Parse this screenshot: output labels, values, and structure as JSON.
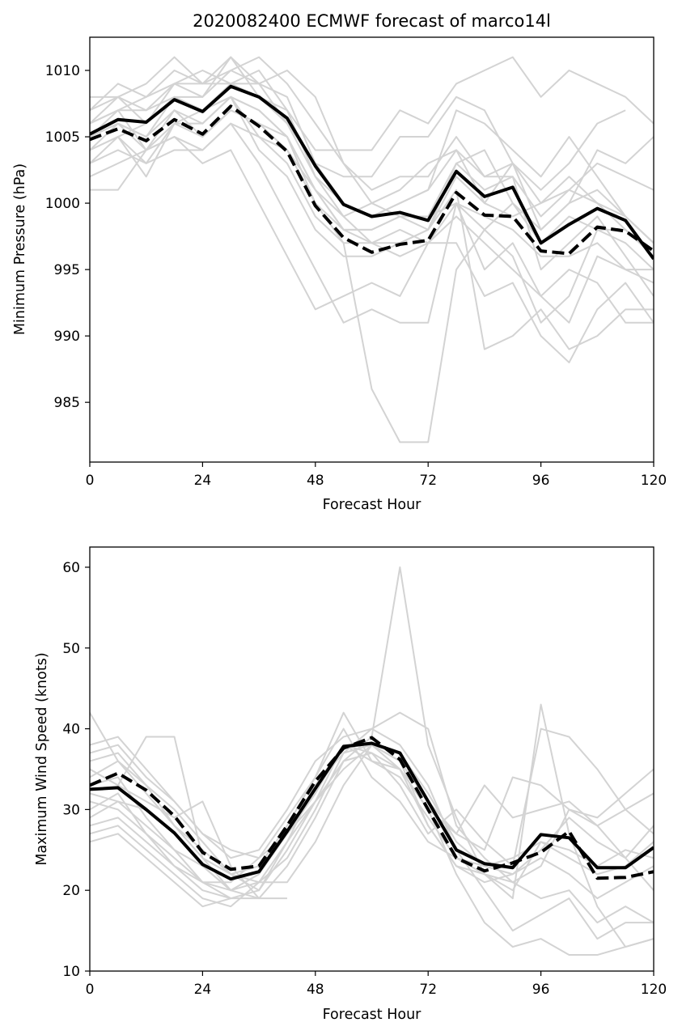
{
  "figure_title": "2020082400 ECMWF forecast of marco14l",
  "colors": {
    "ensemble": "#d3d3d3",
    "mean": "#000000",
    "frame": "#000000",
    "background": "#ffffff"
  },
  "chart_data": [
    {
      "type": "line",
      "title": "2020082400 ECMWF forecast of marco14l",
      "xlabel": "Forecast Hour",
      "ylabel": "Minimum Pressure (hPa)",
      "xlim": [
        0,
        120
      ],
      "ylim": [
        980.5,
        1012.5
      ],
      "xticks": [
        0,
        24,
        48,
        72,
        96,
        120
      ],
      "yticks": [
        985,
        990,
        995,
        1000,
        1005,
        1010
      ],
      "grid": false,
      "legend": "none",
      "x": [
        0,
        6,
        12,
        18,
        24,
        30,
        36,
        42,
        48,
        54,
        60,
        66,
        72,
        78,
        84,
        90,
        96,
        102,
        108,
        114,
        120
      ],
      "series": [
        {
          "style": "solid-black",
          "values": [
            1005.2,
            1006.3,
            1006.1,
            1007.8,
            1006.9,
            1008.8,
            1008.0,
            1006.4,
            1002.8,
            999.9,
            999.0,
            999.3,
            998.7,
            1002.4,
            1000.5,
            1001.2,
            997.0,
            998.4,
            999.6,
            998.7,
            995.8
          ]
        },
        {
          "style": "dashed-black",
          "values": [
            1004.8,
            1005.6,
            1004.7,
            1006.3,
            1005.2,
            1007.3,
            1005.8,
            1003.9,
            999.8,
            997.4,
            996.3,
            996.9,
            997.2,
            1000.8,
            999.1,
            999.0,
            996.4,
            996.2,
            998.2,
            997.9,
            996.4
          ]
        },
        {
          "style": "ensemble",
          "values": [
            1006,
            1008,
            1009,
            1011,
            1009,
            1010,
            1011,
            1009,
            1006,
            1003,
            1001,
            1002,
            1002,
            1005,
            1002,
            1003,
            1000,
            1001,
            1003,
            1002,
            1001
          ]
        },
        {
          "style": "ensemble",
          "values": [
            1005,
            1007,
            1008,
            1009,
            1008,
            1011,
            1009,
            1008,
            1003,
            1000,
            999,
            1000,
            1001,
            1007,
            1006,
            1004,
            1002,
            1005,
            1002,
            999,
            997
          ]
        },
        {
          "style": "ensemble",
          "values": [
            1004,
            1006,
            1005,
            1008,
            1007,
            1009,
            1008,
            1007,
            1002,
            999,
            1000,
            1001,
            1003,
            1004,
            1000,
            1003,
            998,
            1000,
            1004,
            1003,
            1005
          ]
        },
        {
          "style": "ensemble",
          "values": [
            1003,
            1004,
            1003,
            1006,
            1005,
            1007,
            1006,
            1004,
            1001,
            998,
            998,
            999,
            999,
            1000,
            998,
            1000,
            997,
            999,
            998,
            998,
            996
          ]
        },
        {
          "style": "ensemble",
          "values": [
            1001,
            1001,
            1004,
            1005,
            1004,
            1006,
            1003,
            999,
            995,
            991,
            992,
            991,
            991,
            1000,
            995,
            997,
            993,
            991,
            996,
            995,
            995
          ]
        },
        {
          "style": "ensemble",
          "values": [
            1007,
            1008,
            1006,
            1009,
            1010,
            1009,
            1010,
            1007,
            1004,
            1004,
            1004,
            1007,
            1006,
            1009,
            1010,
            1011,
            1008,
            1010,
            1009,
            1008,
            1006
          ]
        },
        {
          "style": "ensemble",
          "values": [
            1004,
            1005,
            1002,
            1006,
            1006,
            1008,
            1004,
            1002,
            998,
            996,
            996,
            997,
            998,
            1003,
            1001,
            1002,
            999,
            1001,
            1000,
            999,
            997
          ]
        },
        {
          "style": "ensemble",
          "values": [
            1002,
            1003,
            1004,
            1007,
            1005,
            1007,
            1006,
            1005,
            1000,
            997,
            986,
            982,
            982,
            995,
            998,
            996,
            991,
            993,
            998,
            997,
            995
          ]
        },
        {
          "style": "ensemble",
          "values": [
            1006,
            1007,
            1007,
            1008,
            1008,
            1010,
            1009,
            1006,
            1003,
            1002,
            1002,
            1005,
            1005,
            1008,
            1007,
            1003,
            1001,
            1003,
            1006,
            1007,
            null
          ]
        },
        {
          "style": "ensemble",
          "values": [
            1005,
            1006,
            1005,
            1007,
            1006,
            1008,
            1007,
            1005,
            1001,
            999,
            997,
            998,
            997,
            997,
            993,
            994,
            990,
            988,
            992,
            994,
            991
          ]
        },
        {
          "style": "ensemble",
          "values": [
            1003,
            1005,
            1003,
            1004,
            1004,
            1006,
            1005,
            1004,
            1000,
            998,
            997,
            997,
            998,
            1001,
            989,
            990,
            992,
            989,
            990,
            992,
            992
          ]
        },
        {
          "style": "ensemble",
          "values": [
            1007,
            1009,
            1008,
            1010,
            1009,
            1011,
            1008,
            1006,
            1002,
            1000,
            999,
            1000,
            1001,
            1004,
            1002,
            1002,
            995,
            997,
            999,
            996,
            993
          ]
        },
        {
          "style": "ensemble",
          "values": [
            1005,
            1006,
            1004,
            1005,
            1003,
            1004,
            1000,
            996,
            992,
            993,
            994,
            993,
            997,
            999,
            997,
            995,
            993,
            995,
            994,
            991,
            991
          ]
        },
        {
          "style": "ensemble",
          "values": [
            1008,
            1008,
            1007,
            1009,
            1009,
            1009,
            1009,
            1010,
            1008,
            1003,
            1000,
            999,
            998,
            1002,
            1000,
            999,
            1000,
            1002,
            1000,
            998,
            996
          ]
        },
        {
          "style": "ensemble",
          "values": [
            1004,
            1005,
            1006,
            1008,
            1007,
            1008,
            1007,
            1005,
            1001,
            998,
            998,
            999,
            999,
            1003,
            1004,
            1000,
            998,
            1000,
            1001,
            999,
            997
          ]
        },
        {
          "style": "ensemble",
          "values": [
            1006,
            1007,
            1004,
            1006,
            1007,
            1008,
            1005,
            1003,
            999,
            997,
            997,
            996,
            997,
            1000,
            999,
            998,
            996,
            996,
            997,
            995,
            994
          ]
        }
      ]
    },
    {
      "type": "line",
      "title": "",
      "xlabel": "Forecast Hour",
      "ylabel": "Maximum Wind Speed (knots)",
      "xlim": [
        0,
        120
      ],
      "ylim": [
        10,
        62.5
      ],
      "xticks": [
        0,
        24,
        48,
        72,
        96,
        120
      ],
      "yticks": [
        10,
        20,
        30,
        40,
        50,
        60
      ],
      "grid": false,
      "legend": "none",
      "x": [
        0,
        6,
        12,
        18,
        24,
        30,
        36,
        42,
        48,
        54,
        60,
        66,
        72,
        78,
        84,
        90,
        96,
        102,
        108,
        114,
        120
      ],
      "series": [
        {
          "style": "solid-black",
          "values": [
            32.5,
            32.7,
            30.0,
            27.1,
            23.2,
            21.4,
            22.3,
            27.3,
            32.6,
            37.8,
            38.2,
            37.0,
            31.0,
            25.0,
            23.3,
            22.8,
            26.9,
            26.5,
            22.8,
            22.8,
            25.3
          ]
        },
        {
          "style": "dashed-black",
          "values": [
            33.0,
            34.5,
            32.4,
            29.2,
            24.7,
            22.6,
            23.0,
            28.0,
            33.5,
            37.6,
            38.9,
            36.2,
            30.0,
            24.0,
            22.4,
            23.4,
            24.7,
            27.3,
            21.5,
            21.6,
            22.3
          ]
        },
        {
          "style": "ensemble",
          "values": [
            42,
            36,
            33,
            30,
            26,
            22,
            23,
            28,
            34,
            42,
            36,
            35,
            28,
            23,
            21,
            22,
            24,
            22,
            19,
            21,
            23
          ]
        },
        {
          "style": "ensemble",
          "values": [
            38,
            39,
            35,
            31,
            27,
            24,
            25,
            30,
            36,
            39,
            40,
            42,
            40,
            28,
            24,
            21,
            23,
            30,
            29,
            32,
            35
          ]
        },
        {
          "style": "ensemble",
          "values": [
            35,
            33,
            39,
            39,
            24,
            20,
            22,
            27,
            32,
            38,
            37,
            35,
            30,
            27,
            33,
            29,
            30,
            31,
            28,
            24,
            20
          ]
        },
        {
          "style": "ensemble",
          "values": [
            31,
            30,
            27,
            23,
            20,
            19,
            20,
            25,
            31,
            36,
            39,
            60,
            38,
            29,
            22,
            19,
            43,
            27,
            18,
            13,
            14
          ]
        },
        {
          "style": "ensemble",
          "values": [
            27,
            28,
            25,
            22,
            19,
            18,
            21,
            26,
            33,
            37,
            40,
            38,
            33,
            25,
            20,
            15,
            17,
            19,
            14,
            16,
            16
          ]
        },
        {
          "style": "ensemble",
          "values": [
            29,
            31,
            28,
            25,
            21,
            21,
            24,
            29,
            34,
            40,
            34,
            31,
            26,
            24,
            22,
            20,
            26,
            24,
            22,
            23,
            26
          ]
        },
        {
          "style": "ensemble",
          "values": [
            33,
            34,
            29,
            25,
            23,
            20,
            19,
            23,
            29,
            36,
            37,
            33,
            27,
            30,
            26,
            23,
            40,
            39,
            35,
            30,
            32
          ]
        },
        {
          "style": "ensemble",
          "values": [
            36,
            37,
            33,
            28,
            25,
            22,
            21,
            21,
            26,
            33,
            38,
            36,
            28,
            23,
            22,
            21,
            19,
            20,
            16,
            18,
            16
          ]
        },
        {
          "style": "ensemble",
          "values": [
            30,
            32,
            27,
            24,
            21,
            19,
            19,
            19,
            null,
            null,
            null,
            null,
            null,
            null,
            null,
            null,
            null,
            null,
            null,
            null,
            null
          ]
        },
        {
          "style": "ensemble",
          "values": [
            26,
            27,
            24,
            21,
            18,
            19,
            null,
            null,
            null,
            null,
            null,
            null,
            null,
            null,
            null,
            null,
            null,
            null,
            null,
            null,
            null
          ]
        },
        {
          "style": "ensemble",
          "values": [
            34,
            36,
            32,
            28,
            24,
            22,
            20,
            26,
            31,
            38,
            38,
            35,
            30,
            22,
            16,
            13,
            14,
            12,
            12,
            13,
            14
          ]
        },
        {
          "style": "ensemble",
          "values": [
            37,
            38,
            34,
            31,
            27,
            25,
            24,
            27,
            31,
            35,
            38,
            36,
            31,
            27,
            25,
            34,
            33,
            30,
            28,
            30,
            27
          ]
        },
        {
          "style": "ensemble",
          "values": [
            32,
            31,
            30,
            27,
            23,
            20,
            22,
            27,
            33,
            38,
            36,
            34,
            29,
            24,
            23,
            22,
            25,
            29,
            26,
            24,
            28
          ]
        },
        {
          "style": "ensemble",
          "values": [
            35,
            33,
            31,
            29,
            31,
            23,
            19,
            null,
            null,
            null,
            null,
            null,
            null,
            null,
            null,
            null,
            null,
            null,
            null,
            null,
            null
          ]
        },
        {
          "style": "ensemble",
          "values": [
            28,
            29,
            26,
            23,
            21,
            20,
            21,
            24,
            30,
            37,
            38,
            37,
            32,
            26,
            23,
            24,
            26,
            25,
            23,
            25,
            24
          ]
        }
      ]
    }
  ]
}
